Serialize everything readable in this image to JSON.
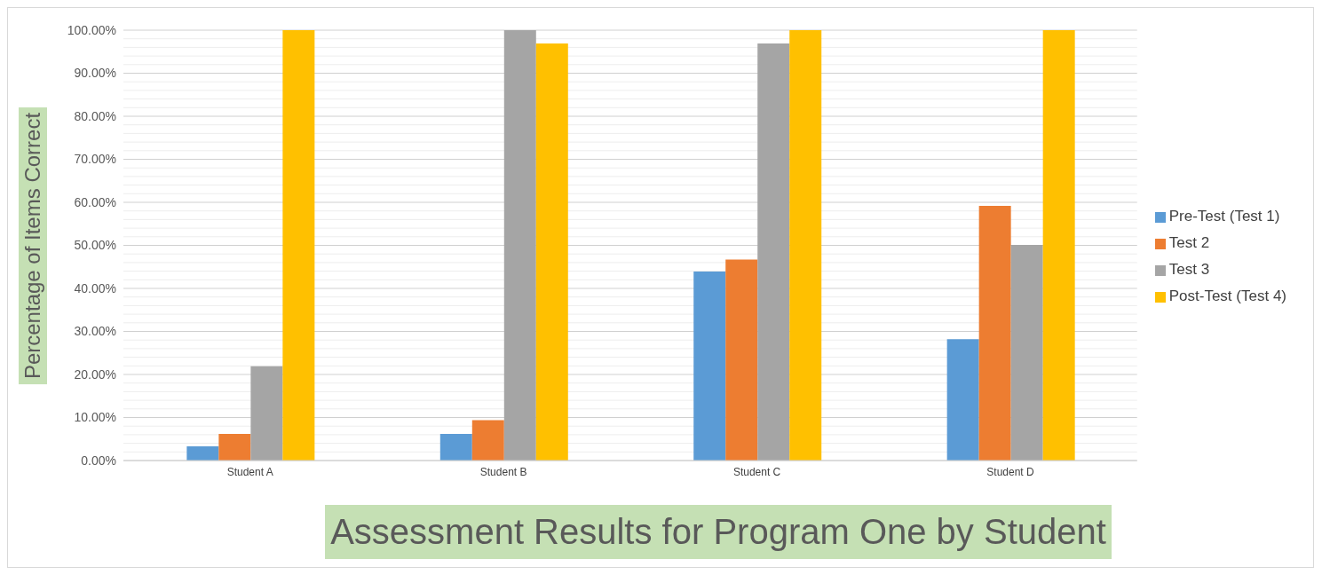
{
  "chart_data": {
    "type": "bar",
    "title": "Assessment Results for Program One by Student",
    "ylabel": "Percentage of Items Correct",
    "categories": [
      "Student A",
      "Student B",
      "Student C",
      "Student D"
    ],
    "series": [
      {
        "name": "Pre-Test (Test 1)",
        "color": "#5b9bd5",
        "values": [
          3.3,
          6.2,
          43.9,
          28.2
        ]
      },
      {
        "name": "Test 2",
        "color": "#ed7d31",
        "values": [
          6.2,
          9.4,
          46.7,
          59.2
        ]
      },
      {
        "name": "Test 3",
        "color": "#a5a5a5",
        "values": [
          21.9,
          100,
          96.9,
          50.1
        ]
      },
      {
        "name": "Post-Test (Test 4)",
        "color": "#ffc000",
        "values": [
          100,
          96.9,
          100,
          100
        ]
      }
    ],
    "ylim": [
      0,
      100
    ],
    "yticks": [
      {
        "value": 0,
        "label": "0.00%"
      },
      {
        "value": 2,
        "label": null
      },
      {
        "value": 4,
        "label": null
      },
      {
        "value": 6,
        "label": null
      },
      {
        "value": 8,
        "label": null
      },
      {
        "value": 10,
        "label": "10.00%"
      },
      {
        "value": 12,
        "label": null
      },
      {
        "value": 14,
        "label": null
      },
      {
        "value": 16,
        "label": null
      },
      {
        "value": 18,
        "label": null
      },
      {
        "value": 20,
        "label": "20.00%"
      },
      {
        "value": 22,
        "label": null
      },
      {
        "value": 24,
        "label": null
      },
      {
        "value": 26,
        "label": null
      },
      {
        "value": 28,
        "label": null
      },
      {
        "value": 30,
        "label": "30.00%"
      },
      {
        "value": 32,
        "label": null
      },
      {
        "value": 34,
        "label": null
      },
      {
        "value": 36,
        "label": null
      },
      {
        "value": 38,
        "label": null
      },
      {
        "value": 40,
        "label": "40.00%"
      },
      {
        "value": 42,
        "label": null
      },
      {
        "value": 44,
        "label": null
      },
      {
        "value": 46,
        "label": null
      },
      {
        "value": 48,
        "label": null
      },
      {
        "value": 50,
        "label": "50.00%"
      },
      {
        "value": 52,
        "label": null
      },
      {
        "value": 54,
        "label": null
      },
      {
        "value": 56,
        "label": null
      },
      {
        "value": 58,
        "label": null
      },
      {
        "value": 60,
        "label": "60.00%"
      },
      {
        "value": 62,
        "label": null
      },
      {
        "value": 64,
        "label": null
      },
      {
        "value": 66,
        "label": null
      },
      {
        "value": 68,
        "label": null
      },
      {
        "value": 70,
        "label": "70.00%"
      },
      {
        "value": 72,
        "label": null
      },
      {
        "value": 74,
        "label": null
      },
      {
        "value": 76,
        "label": null
      },
      {
        "value": 78,
        "label": null
      },
      {
        "value": 80,
        "label": "80.00%"
      },
      {
        "value": 82,
        "label": null
      },
      {
        "value": 84,
        "label": null
      },
      {
        "value": 86,
        "label": null
      },
      {
        "value": 88,
        "label": null
      },
      {
        "value": 90,
        "label": "90.00%"
      },
      {
        "value": 92,
        "label": null
      },
      {
        "value": 94,
        "label": null
      },
      {
        "value": 96,
        "label": null
      },
      {
        "value": 98,
        "label": null
      },
      {
        "value": 100,
        "label": "100.00%"
      }
    ],
    "grid": "y",
    "legend": "right"
  }
}
